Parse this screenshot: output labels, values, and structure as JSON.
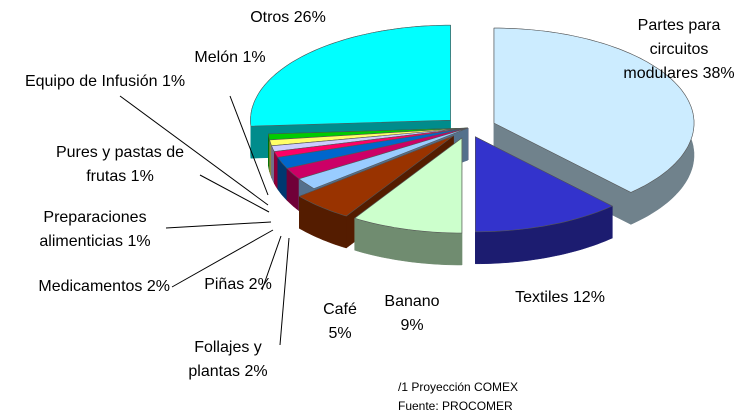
{
  "chart_data": {
    "type": "pie",
    "categories": [
      "Partes para circuitos modulares",
      "Textiles",
      "Banano",
      "Café",
      "Follajes y plantas",
      "Piñas",
      "Medicamentos",
      "Preparaciones alimenticias",
      "Pures y pastas de frutas",
      "Equipo de Infusión",
      "Melón",
      "Otros"
    ],
    "values": [
      38,
      12,
      9,
      5,
      2,
      2,
      2,
      1,
      1,
      1,
      1,
      26
    ],
    "value_labels": [
      "38%",
      "12%",
      "9%",
      "5%",
      "2%",
      "2%",
      "2%",
      "1%",
      "1%",
      "1%",
      "1%",
      "26%"
    ],
    "colors": [
      "#ccecff",
      "#3333cc",
      "#ccffcc",
      "#993300",
      "#99ccff",
      "#cc0066",
      "#0066cc",
      "#ff0066",
      "#ccccff",
      "#ffff66",
      "#00cc00",
      "#00ffff"
    ],
    "notes": [
      "/1 Proyección COMEX",
      "Fuente: PROCOMER"
    ]
  }
}
